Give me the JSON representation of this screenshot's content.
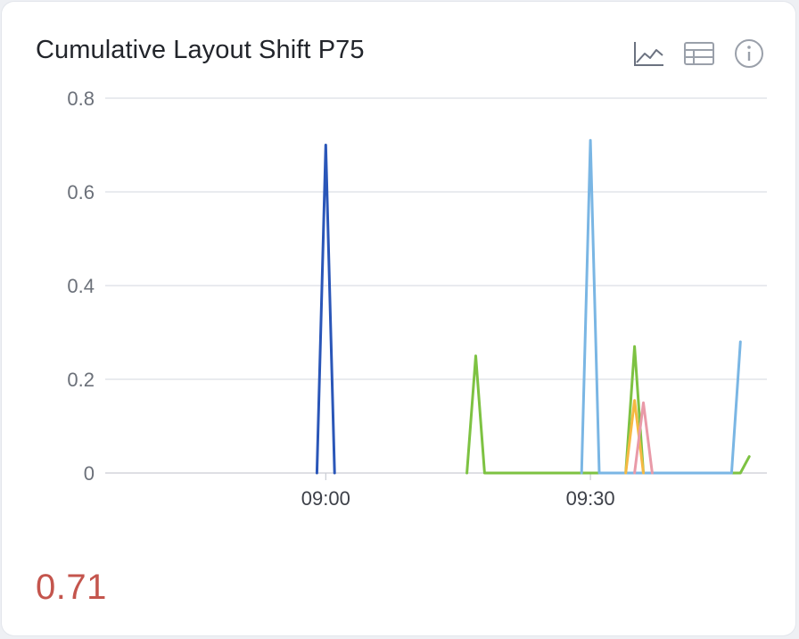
{
  "title": "Cumulative Layout Shift P75",
  "toolbar": {
    "icons": [
      "line-chart-icon",
      "table-icon",
      "info-icon"
    ]
  },
  "summary_value": "0.71",
  "summary_color": "#c4554d",
  "chart_data": {
    "type": "line",
    "ylim": [
      0,
      0.8
    ],
    "y_ticks": [
      0,
      0.2,
      0.4,
      0.6,
      0.8
    ],
    "y_tick_labels": [
      "0",
      "0.2",
      "0.4",
      "0.6",
      "0.8"
    ],
    "x_ticks": [
      {
        "value": "09:00",
        "label": "09:00"
      },
      {
        "value": "09:30",
        "label": "09:30"
      }
    ],
    "grid": true,
    "series": [
      {
        "color": "#2a56b8",
        "points": [
          [
            "08:59",
            0
          ],
          [
            "09:00",
            0.7
          ],
          [
            "09:01",
            0
          ]
        ]
      },
      {
        "color": "#7dc242",
        "points": [
          [
            "09:16",
            0
          ],
          [
            "09:17",
            0.25
          ],
          [
            "09:18",
            0
          ],
          [
            "09:34",
            0
          ],
          [
            "09:35",
            0.27
          ],
          [
            "09:36",
            0
          ],
          [
            "09:47",
            0
          ],
          [
            "09:48",
            0.035
          ]
        ]
      },
      {
        "color": "#7ab6e4",
        "points": [
          [
            "09:29",
            0
          ],
          [
            "09:30",
            0.71
          ],
          [
            "09:31",
            0
          ],
          [
            "09:46",
            0
          ],
          [
            "09:47",
            0.28
          ]
        ]
      },
      {
        "color": "#f5b942",
        "points": [
          [
            "09:34",
            0
          ],
          [
            "09:35",
            0.155
          ],
          [
            "09:36",
            0
          ]
        ]
      },
      {
        "color": "#e99aa8",
        "points": [
          [
            "09:35",
            0
          ],
          [
            "09:36",
            0.15
          ],
          [
            "09:37",
            0
          ]
        ]
      }
    ]
  }
}
